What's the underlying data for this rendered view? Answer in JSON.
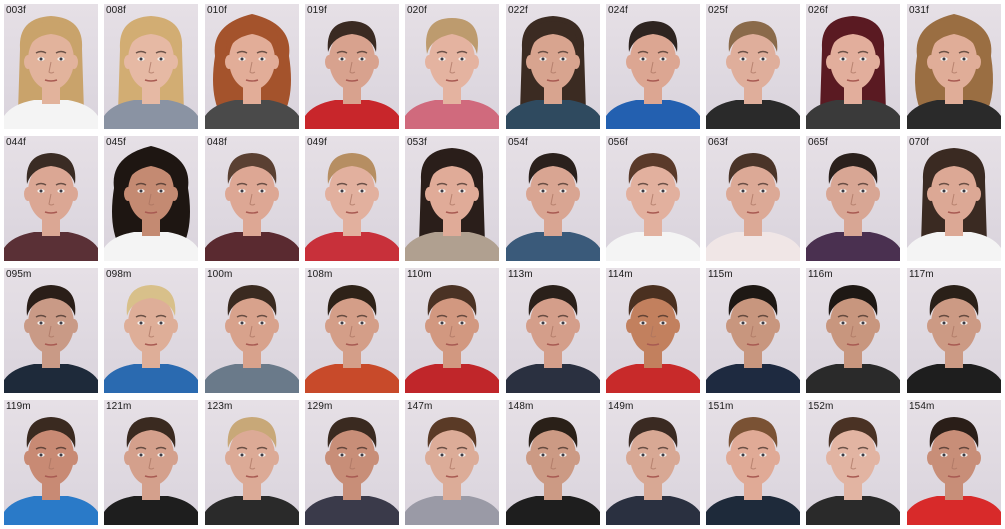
{
  "rows": [
    [
      {
        "id": "003f",
        "hair": "#c9a36b",
        "skin": "#e2b39c",
        "shirt": "#f4f4f4",
        "long": true,
        "curly": false
      },
      {
        "id": "008f",
        "hair": "#d2ad73",
        "skin": "#e6b9a4",
        "shirt": "#8a93a3",
        "long": true,
        "curly": false
      },
      {
        "id": "010f",
        "hair": "#a4532c",
        "skin": "#e2ad98",
        "shirt": "#4a4a4a",
        "long": true,
        "curly": true
      },
      {
        "id": "019f",
        "hair": "#3a2a22",
        "skin": "#d8a28e",
        "shirt": "#c8262b",
        "long": false,
        "curly": false
      },
      {
        "id": "020f",
        "hair": "#bd9b6e",
        "skin": "#e4b3a0",
        "shirt": "#d06a7d",
        "long": false,
        "curly": true
      },
      {
        "id": "022f",
        "hair": "#3b2b22",
        "skin": "#d8a48f",
        "shirt": "#2f4a5f",
        "long": true,
        "curly": false
      },
      {
        "id": "024f",
        "hair": "#2e2420",
        "skin": "#dca692",
        "shirt": "#2360b0",
        "long": false,
        "curly": false
      },
      {
        "id": "025f",
        "hair": "#8a6a4a",
        "skin": "#dfae9b",
        "shirt": "#2a2a2a",
        "long": false,
        "curly": false
      },
      {
        "id": "026f",
        "hair": "#5a1a22",
        "skin": "#e2ae9c",
        "shirt": "#3a3a3a",
        "long": true,
        "curly": false
      },
      {
        "id": "031f",
        "hair": "#9a6e42",
        "skin": "#e0ad98",
        "shirt": "#2a2a2a",
        "long": true,
        "curly": true
      }
    ],
    [
      {
        "id": "044f",
        "hair": "#3a2c24",
        "skin": "#dba794",
        "shirt": "#5a3036",
        "long": false,
        "curly": false
      },
      {
        "id": "045f",
        "hair": "#1e1612",
        "skin": "#c48a72",
        "shirt": "#f4f4f4",
        "long": true,
        "curly": true
      },
      {
        "id": "048f",
        "hair": "#5a4032",
        "skin": "#dda794",
        "shirt": "#5a2a30",
        "long": false,
        "curly": false
      },
      {
        "id": "049f",
        "hair": "#b68e62",
        "skin": "#e2b09e",
        "shirt": "#c8303a",
        "long": false,
        "curly": false
      },
      {
        "id": "053f",
        "hair": "#2a1e1a",
        "skin": "#e0ab98",
        "shirt": "#b0a090",
        "long": true,
        "curly": false
      },
      {
        "id": "054f",
        "hair": "#2a201c",
        "skin": "#d9a592",
        "shirt": "#3a5a7a",
        "long": false,
        "curly": false
      },
      {
        "id": "056f",
        "hair": "#5a3a2a",
        "skin": "#e2b09e",
        "shirt": "#f4f4f4",
        "long": false,
        "curly": false
      },
      {
        "id": "063f",
        "hair": "#4a3428",
        "skin": "#dca996",
        "shirt": "#f0e6e6",
        "long": false,
        "curly": false
      },
      {
        "id": "065f",
        "hair": "#2a201c",
        "skin": "#d8a694",
        "shirt": "#4a3050",
        "long": false,
        "curly": false
      },
      {
        "id": "070f",
        "hair": "#3a2a22",
        "skin": "#dca895",
        "shirt": "#f4f4f4",
        "long": true,
        "curly": false
      }
    ],
    [
      {
        "id": "095m",
        "hair": "#2a1e18",
        "skin": "#c99a86",
        "shirt": "#1e2a3a",
        "long": false,
        "curly": false
      },
      {
        "id": "098m",
        "hair": "#d8c08a",
        "skin": "#deae98",
        "shirt": "#2a6ab0",
        "long": false,
        "curly": false
      },
      {
        "id": "100m",
        "hair": "#3a2a20",
        "skin": "#d8a28c",
        "shirt": "#6a7a8a",
        "long": false,
        "curly": false
      },
      {
        "id": "108m",
        "hair": "#2e2218",
        "skin": "#d49e88",
        "shirt": "#c84a2a",
        "long": false,
        "curly": false
      },
      {
        "id": "110m",
        "hair": "#4a3224",
        "skin": "#d29880",
        "shirt": "#c0262a",
        "long": false,
        "curly": false
      },
      {
        "id": "113m",
        "hair": "#2a201a",
        "skin": "#d49e8a",
        "shirt": "#2a3040",
        "long": false,
        "curly": false
      },
      {
        "id": "114m",
        "hair": "#4a3020",
        "skin": "#c2805e",
        "shirt": "#c82a2a",
        "long": false,
        "curly": false
      },
      {
        "id": "115m",
        "hair": "#1e1814",
        "skin": "#c8967e",
        "shirt": "#1e2a40",
        "long": false,
        "curly": false
      },
      {
        "id": "116m",
        "hair": "#1e1814",
        "skin": "#c8967e",
        "shirt": "#2a2a2a",
        "long": false,
        "curly": false
      },
      {
        "id": "117m",
        "hair": "#2a2018",
        "skin": "#cc9a84",
        "shirt": "#1e1e1e",
        "long": false,
        "curly": false
      }
    ],
    [
      {
        "id": "119m",
        "hair": "#3a2a20",
        "skin": "#c88a74",
        "shirt": "#2a7ac8",
        "long": false,
        "curly": false
      },
      {
        "id": "121m",
        "hair": "#3a2a20",
        "skin": "#d4a08c",
        "shirt": "#1e1e1e",
        "long": false,
        "curly": false
      },
      {
        "id": "123m",
        "hair": "#c8a878",
        "skin": "#dcaa96",
        "shirt": "#2a2a2a",
        "long": false,
        "curly": false
      },
      {
        "id": "129m",
        "hair": "#3a2a20",
        "skin": "#c88e78",
        "shirt": "#3a3a4a",
        "long": false,
        "curly": false
      },
      {
        "id": "147m",
        "hair": "#5a3a26",
        "skin": "#dcac98",
        "shirt": "#9a9aa6",
        "long": false,
        "curly": false
      },
      {
        "id": "148m",
        "hair": "#2a2018",
        "skin": "#cc9a84",
        "shirt": "#1e1e1e",
        "long": false,
        "curly": false
      },
      {
        "id": "149m",
        "hair": "#3a2a22",
        "skin": "#d8a894",
        "shirt": "#2a3040",
        "long": false,
        "curly": false
      },
      {
        "id": "151m",
        "hair": "#7a5234",
        "skin": "#e0aa96",
        "shirt": "#1e2a3a",
        "long": false,
        "curly": false
      },
      {
        "id": "152m",
        "hair": "#4a3224",
        "skin": "#e2b4a2",
        "shirt": "#2a2a2a",
        "long": false,
        "curly": false
      },
      {
        "id": "154m",
        "hair": "#2a1e18",
        "skin": "#c88e78",
        "shirt": "#d82a2a",
        "long": false,
        "curly": false
      }
    ]
  ]
}
